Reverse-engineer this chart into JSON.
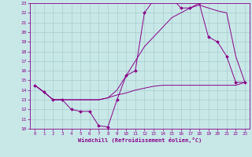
{
  "xlabel": "Windchill (Refroidissement éolien,°C)",
  "bg_color": "#c8e8e8",
  "grid_color": "#a8cccc",
  "line_color": "#880088",
  "xlim": [
    -0.5,
    23.5
  ],
  "ylim": [
    10,
    23
  ],
  "xticks": [
    0,
    1,
    2,
    3,
    4,
    5,
    6,
    7,
    8,
    9,
    10,
    11,
    12,
    13,
    14,
    15,
    16,
    17,
    18,
    19,
    20,
    21,
    22,
    23
  ],
  "yticks": [
    10,
    11,
    12,
    13,
    14,
    15,
    16,
    17,
    18,
    19,
    20,
    21,
    22,
    23
  ],
  "line1_x": [
    0,
    1,
    2,
    3,
    4,
    5,
    6,
    7,
    8,
    9,
    10,
    11,
    12,
    13,
    14,
    15,
    16,
    17,
    18,
    19,
    20,
    21,
    22,
    23
  ],
  "line1_y": [
    14.5,
    13.8,
    13.0,
    13.0,
    12.0,
    11.8,
    11.8,
    10.3,
    10.2,
    13.0,
    15.5,
    16.0,
    22.0,
    23.3,
    23.5,
    23.5,
    22.5,
    22.5,
    23.0,
    19.5,
    19.0,
    17.5,
    14.8,
    14.8
  ],
  "line2_x": [
    0,
    1,
    2,
    3,
    4,
    5,
    6,
    7,
    8,
    9,
    10,
    11,
    12,
    13,
    14,
    15,
    16,
    17,
    18,
    19,
    20,
    21,
    22,
    23
  ],
  "line2_y": [
    14.5,
    13.8,
    13.0,
    13.0,
    13.0,
    13.0,
    13.0,
    13.0,
    13.2,
    13.5,
    13.7,
    14.0,
    14.2,
    14.4,
    14.5,
    14.5,
    14.5,
    14.5,
    14.5,
    14.5,
    14.5,
    14.5,
    14.5,
    14.8
  ],
  "line3_x": [
    0,
    1,
    2,
    3,
    4,
    5,
    6,
    7,
    8,
    9,
    10,
    11,
    12,
    13,
    14,
    15,
    16,
    17,
    18,
    19,
    20,
    21,
    22,
    23
  ],
  "line3_y": [
    14.5,
    13.8,
    13.0,
    13.0,
    13.0,
    13.0,
    13.0,
    13.0,
    13.2,
    14.0,
    15.5,
    17.0,
    18.5,
    19.5,
    20.5,
    21.5,
    22.0,
    22.5,
    22.8,
    22.5,
    22.2,
    22.0,
    17.5,
    14.8
  ]
}
